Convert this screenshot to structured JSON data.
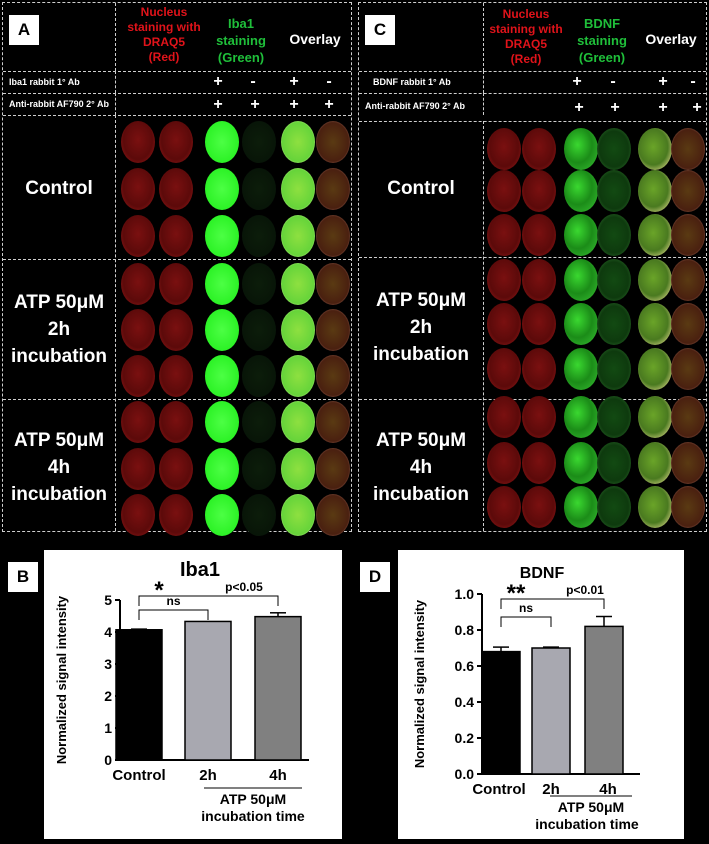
{
  "panel_A": {
    "label": "A",
    "headers": {
      "nucleus": [
        "Nucleus",
        "staining with",
        "DRAQ5",
        "(Red)"
      ],
      "stain": [
        "Iba1",
        "staining",
        "(Green)"
      ],
      "overlay": "Overlay"
    },
    "ab_rows": [
      {
        "label": "Iba1 rabbit 1° Ab",
        "symbols": [
          "+",
          "-",
          "+",
          "-"
        ]
      },
      {
        "label": "Anti-rabbit AF790 2° Ab",
        "symbols": [
          "+",
          "+",
          "+",
          "+"
        ]
      }
    ],
    "conditions": [
      [
        "Control"
      ],
      [
        "ATP 50μM",
        "2h",
        "incubation"
      ],
      [
        "ATP 50μM",
        "4h",
        "incubation"
      ]
    ]
  },
  "panel_C": {
    "label": "C",
    "headers": {
      "nucleus": [
        "Nucleus",
        "staining with",
        "DRAQ5",
        "(Red)"
      ],
      "stain": [
        "BDNF",
        "staining",
        "(Green)"
      ],
      "overlay": "Overlay"
    },
    "ab_rows": [
      {
        "label": "BDNF rabbit 1° Ab",
        "symbols": [
          "+",
          "-",
          "+",
          "-"
        ]
      },
      {
        "label": "Anti-rabbit AF790 2° Ab",
        "symbols": [
          "+",
          "+",
          "+",
          "+"
        ]
      }
    ],
    "conditions": [
      [
        "Control"
      ],
      [
        "ATP 50μM",
        "2h",
        "incubation"
      ],
      [
        "ATP 50μM",
        "4h",
        "incubation"
      ]
    ]
  },
  "chart_data": [
    {
      "panel": "B",
      "type": "bar",
      "title": "Iba1",
      "ylabel": "Normalized signal intensity",
      "categories": [
        "Control",
        "2h",
        "4h"
      ],
      "values": [
        4.07,
        4.33,
        4.48
      ],
      "errors": [
        0.02,
        0.0,
        0.12
      ],
      "colors": [
        "#000000",
        "#a8a8b0",
        "#808080"
      ],
      "ylim": [
        0,
        5
      ],
      "yticks": [
        "0",
        "1",
        "2",
        "3",
        "4",
        "5"
      ],
      "group_label": [
        "ATP 50μM",
        "incubation time"
      ],
      "annotations": {
        "ns": "ns",
        "star": "*",
        "p": "p<0.05"
      }
    },
    {
      "panel": "D",
      "type": "bar",
      "title": "BDNF",
      "ylabel": "Normalized signal intensity",
      "categories": [
        "Control",
        "2h",
        "4h"
      ],
      "values": [
        0.68,
        0.7,
        0.82
      ],
      "errors": [
        0.025,
        0.005,
        0.055
      ],
      "colors": [
        "#000000",
        "#a8a8b0",
        "#808080"
      ],
      "ylim": [
        0,
        1.0
      ],
      "yticks": [
        "0.0",
        "0.2",
        "0.4",
        "0.6",
        "0.8",
        "1.0"
      ],
      "group_label": [
        "ATP 50μM",
        "incubation time"
      ],
      "annotations": {
        "ns": "ns",
        "star": "**",
        "p": "p<0.01"
      }
    }
  ]
}
